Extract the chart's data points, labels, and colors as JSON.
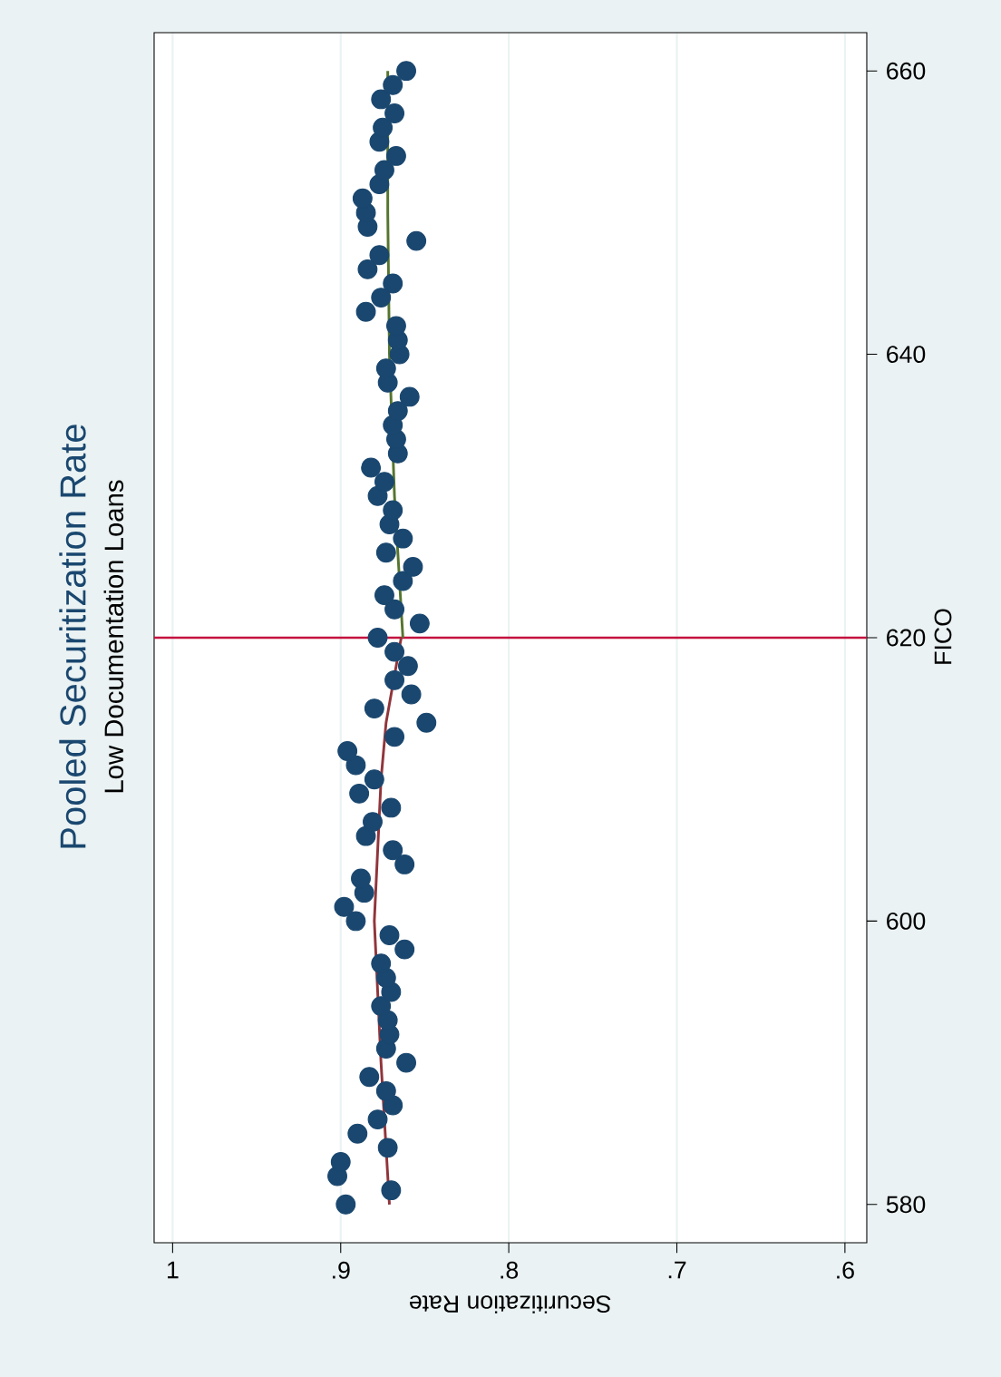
{
  "chart_data": {
    "type": "scatter",
    "title": "Pooled Securitization Rate",
    "subtitle": "Low Documentation Loans",
    "xlabel": "Securitization Rate",
    "ylabel": "FICO",
    "xlim": [
      1.011,
      0.587
    ],
    "ylim": [
      577.3,
      662.7
    ],
    "xticks": [
      1,
      {
        "value": 0.9,
        "label": ".9"
      },
      {
        "value": 0.8,
        "label": ".8"
      },
      {
        "value": 0.7,
        "label": ".7"
      },
      {
        "value": 0.6,
        "label": ".6"
      }
    ],
    "yticks": [
      580,
      600,
      620,
      640,
      660
    ],
    "grid": "x",
    "ref_lines": [
      {
        "axis": "y",
        "value": 620,
        "color": "#c4123f"
      }
    ],
    "series": [
      {
        "marker": "circle",
        "color": "#1a476f",
        "values": [
          580,
          581,
          582,
          583,
          584,
          585,
          586,
          587,
          588,
          589,
          590,
          591,
          592,
          593,
          594,
          595,
          596,
          597,
          598,
          599,
          600,
          601,
          602,
          603,
          604,
          605,
          606,
          607,
          608,
          609,
          610,
          611,
          612,
          613,
          614,
          615,
          616,
          617,
          618,
          619,
          620,
          621,
          622,
          623,
          624,
          625,
          626,
          627,
          628,
          629,
          630,
          631,
          632,
          633,
          634,
          635,
          636,
          637,
          638,
          639,
          640,
          641,
          642,
          643,
          644,
          645,
          646,
          647,
          648,
          649,
          650,
          651,
          652,
          653,
          654,
          655,
          656,
          657,
          658,
          659,
          660
        ],
        "x": [
          0.897,
          0.87,
          0.902,
          0.9,
          0.872,
          0.89,
          0.878,
          0.869,
          0.873,
          0.883,
          0.861,
          0.873,
          0.871,
          0.872,
          0.876,
          0.87,
          0.873,
          0.876,
          0.862,
          0.871,
          0.891,
          0.898,
          0.886,
          0.888,
          0.862,
          0.869,
          0.885,
          0.881,
          0.87,
          0.889,
          0.88,
          0.891,
          0.896,
          0.868,
          0.849,
          0.88,
          0.858,
          0.868,
          0.86,
          0.868,
          0.878,
          0.853,
          0.868,
          0.874,
          0.863,
          0.857,
          0.873,
          0.863,
          0.871,
          0.869,
          0.878,
          0.874,
          0.882,
          0.866,
          0.867,
          0.869,
          0.866,
          0.859,
          0.872,
          0.873,
          0.865,
          0.866,
          0.867,
          0.885,
          0.876,
          0.869,
          0.884,
          0.877,
          0.855,
          0.884,
          0.885,
          0.887,
          0.877,
          0.874,
          0.867,
          0.877,
          0.875,
          0.868,
          0.876,
          0.869,
          0.861
        ]
      },
      {
        "type": "line",
        "marker": "none",
        "color": "#90353b",
        "values": [
          580,
          590,
          600,
          610,
          614,
          620
        ],
        "x": [
          0.871,
          0.876,
          0.88,
          0.876,
          0.873,
          0.864
        ]
      },
      {
        "type": "line",
        "marker": "none",
        "color": "#55752f",
        "values": [
          620,
          630,
          640,
          650,
          660
        ],
        "x": [
          0.863,
          0.868,
          0.871,
          0.872,
          0.872
        ]
      }
    ]
  }
}
